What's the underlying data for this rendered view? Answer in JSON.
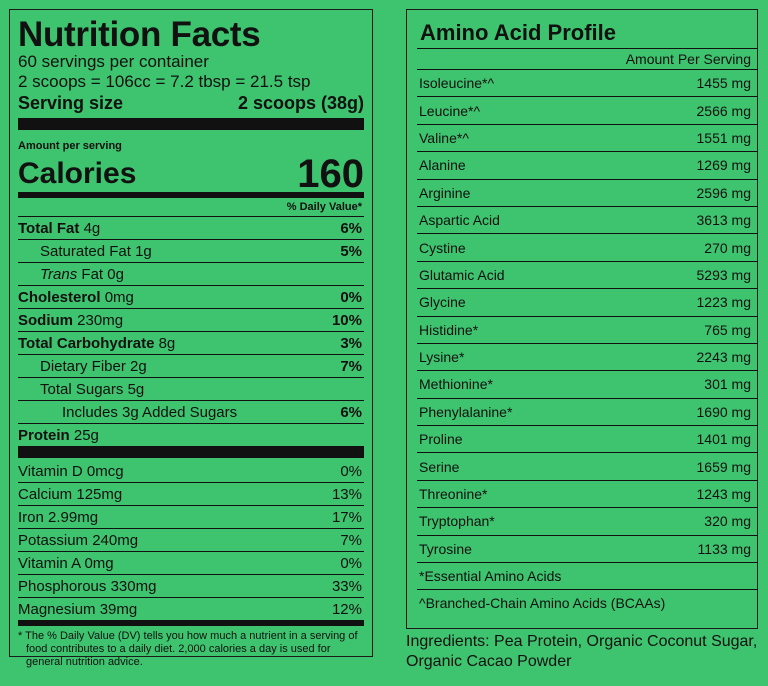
{
  "nutrition": {
    "title": "Nutrition Facts",
    "servings_per_container": "60 servings per container",
    "scoop_equiv": "2 scoops = 106cc = 7.2 tbsp = 21.5 tsp",
    "serving_size_label": "Serving size",
    "serving_size_value": "2 scoops (38g)",
    "amount_per_serving": "Amount per serving",
    "calories_label": "Calories",
    "calories_value": "160",
    "daily_value_header": "% Daily Value*",
    "nutrients": [
      {
        "name": "Total Fat",
        "amount": "4g",
        "dv": "6%"
      },
      {
        "name": "Saturated Fat",
        "amount": "1g",
        "dv": "5%"
      },
      {
        "name_italic": "Trans",
        "name": "Fat",
        "amount": "0g",
        "dv": ""
      },
      {
        "name": "Cholesterol",
        "amount": "0mg",
        "dv": "0%"
      },
      {
        "name": "Sodium",
        "amount": "230mg",
        "dv": "10%"
      },
      {
        "name": "Total Carbohydrate",
        "amount": "8g",
        "dv": "3%"
      },
      {
        "name": "Dietary Fiber",
        "amount": "2g",
        "dv": "7%"
      },
      {
        "name": "Total Sugars",
        "amount": "5g",
        "dv": ""
      },
      {
        "name": "Includes 3g Added Sugars",
        "amount": "",
        "dv": "6%"
      },
      {
        "name": "Protein",
        "amount": "25g",
        "dv": ""
      }
    ],
    "vitamins": [
      {
        "name": "Vitamin D",
        "amount": "0mcg",
        "dv": "0%"
      },
      {
        "name": "Calcium",
        "amount": "125mg",
        "dv": "13%"
      },
      {
        "name": "Iron",
        "amount": "2.99mg",
        "dv": "17%"
      },
      {
        "name": "Potassium",
        "amount": "240mg",
        "dv": "7%"
      },
      {
        "name": "Vitamin A",
        "amount": "0mg",
        "dv": "0%"
      },
      {
        "name": "Phosphorous",
        "amount": "330mg",
        "dv": "33%"
      },
      {
        "name": "Magnesium",
        "amount": "39mg",
        "dv": "12%"
      }
    ],
    "footnote": "* The % Daily Value (DV) tells you how much a nutrient in a serving of food contributes to a daily diet. 2,000 calories a day is used for general nutrition advice."
  },
  "amino": {
    "title": "Amino Acid Profile",
    "column_header": "Amount Per Serving",
    "acids": [
      {
        "name": "Isoleucine*^",
        "amount": "1455 mg"
      },
      {
        "name": "Leucine*^",
        "amount": "2566 mg"
      },
      {
        "name": "Valine*^",
        "amount": "1551 mg"
      },
      {
        "name": "Alanine",
        "amount": "1269 mg"
      },
      {
        "name": "Arginine",
        "amount": "2596 mg"
      },
      {
        "name": "Aspartic Acid",
        "amount": "3613 mg"
      },
      {
        "name": "Cystine",
        "amount": "270 mg"
      },
      {
        "name": "Glutamic Acid",
        "amount": "5293 mg"
      },
      {
        "name": "Glycine",
        "amount": "1223 mg"
      },
      {
        "name": "Histidine*",
        "amount": "765 mg"
      },
      {
        "name": "Lysine*",
        "amount": "2243 mg"
      },
      {
        "name": "Methionine*",
        "amount": "301 mg"
      },
      {
        "name": "Phenylalanine*",
        "amount": "1690 mg"
      },
      {
        "name": "Proline",
        "amount": "1401 mg"
      },
      {
        "name": "Serine",
        "amount": "1659 mg"
      },
      {
        "name": "Threonine*",
        "amount": "1243 mg"
      },
      {
        "name": "Tryptophan*",
        "amount": "320 mg"
      },
      {
        "name": "Tyrosine",
        "amount": "1133 mg"
      }
    ],
    "note_essential": "*Essential Amino Acids",
    "note_bcaa": "^Branched-Chain Amino Acids (BCAAs)"
  },
  "ingredients": "Ingredients: Pea Protein, Organic Coconut Sugar, Organic Cacao Powder",
  "colors": {
    "background": "#3ec36e",
    "ink": "#111111"
  }
}
